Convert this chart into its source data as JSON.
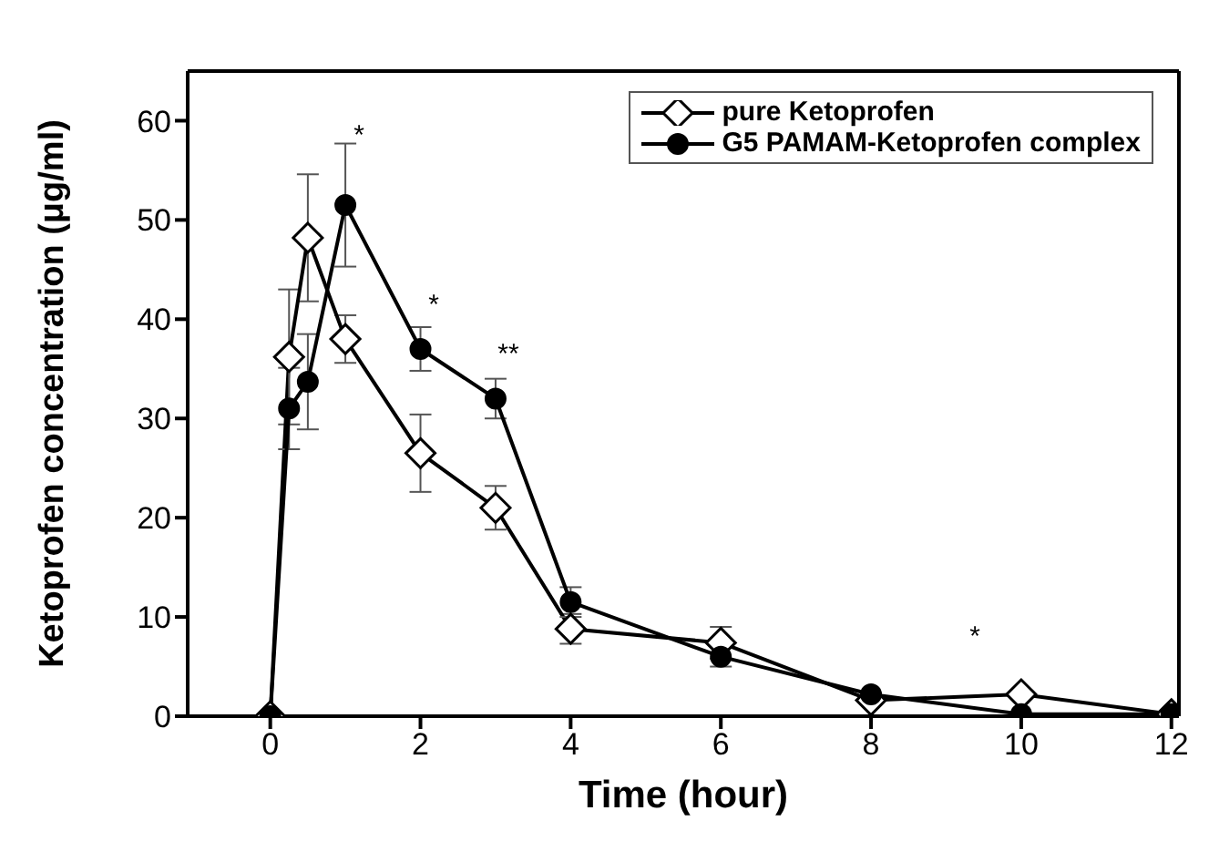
{
  "chart_data": {
    "type": "line",
    "xlabel": "Time (hour)",
    "ylabel": "Ketoprofen concentration  (μg/ml)",
    "x": [
      0,
      0.25,
      0.5,
      1,
      2,
      3,
      4,
      6,
      8,
      10,
      12
    ],
    "series": [
      {
        "name": "pure Ketoprofen",
        "color": "#000000",
        "marker": "diamond",
        "values": [
          0,
          36.2,
          48.2,
          38,
          26.5,
          21,
          8.8,
          7.4,
          1.6,
          2.2,
          0.2
        ],
        "errors": [
          null,
          6.8,
          6.4,
          2.4,
          3.9,
          2.2,
          1.5,
          1.6,
          null,
          null,
          null
        ]
      },
      {
        "name": "G5 PAMAM-Ketoprofen complex",
        "color": "#000000",
        "marker": "circle",
        "values": [
          0,
          31,
          33.7,
          51.5,
          37,
          32,
          11.5,
          6,
          2.2,
          0.2,
          0.2
        ],
        "errors": [
          null,
          4.1,
          4.8,
          6.2,
          2.2,
          2,
          1.5,
          1,
          null,
          null,
          null
        ]
      }
    ],
    "xlim": [
      -1.1,
      12.1
    ],
    "xticks": [
      0,
      2,
      4,
      6,
      8,
      10,
      12
    ],
    "ylim": [
      0,
      65
    ],
    "yticks": [
      0,
      10,
      20,
      30,
      40,
      50,
      60
    ],
    "legend": "top right",
    "grid": false,
    "line_style": "solid",
    "annotations": [
      "*",
      "*",
      "**",
      "*"
    ]
  }
}
